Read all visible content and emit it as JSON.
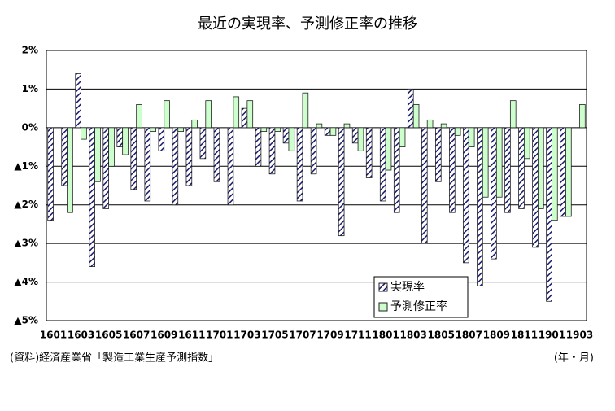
{
  "chart_data": {
    "type": "bar",
    "title": "最近の実現率、予測修正率の推移",
    "categories": [
      "1601",
      null,
      "1603",
      null,
      "1605",
      null,
      "1607",
      null,
      "1609",
      null,
      "1611",
      null,
      "1701",
      null,
      "1703",
      null,
      "1705",
      null,
      "1707",
      null,
      "1709",
      null,
      "1711",
      null,
      "1801",
      null,
      "1803",
      null,
      "1805",
      null,
      "1807",
      null,
      "1809",
      null,
      "1811",
      null,
      "1901",
      null,
      "1903"
    ],
    "series": [
      {
        "name": "実現率",
        "color": "#1a1a6e",
        "pattern": "hatch",
        "values": [
          -2.4,
          -1.5,
          1.4,
          -3.6,
          -2.1,
          -0.5,
          -1.6,
          -1.9,
          -0.6,
          -2.0,
          -1.5,
          -0.8,
          -1.4,
          -2.0,
          0.5,
          -1.0,
          -1.2,
          -0.4,
          -1.9,
          -1.2,
          -0.2,
          -2.8,
          -0.4,
          -1.3,
          -1.9,
          -2.2,
          1.0,
          -3.0,
          -1.4,
          -2.2,
          -3.5,
          -4.1,
          -3.4,
          -2.2,
          -2.1,
          -3.1,
          -4.5,
          -2.3,
          null
        ]
      },
      {
        "name": "予測修正率",
        "color": "#ccffcc",
        "values": [
          0,
          -2.2,
          -0.3,
          -1.4,
          -1.0,
          -0.7,
          0.6,
          -0.1,
          0.7,
          -0.1,
          0.2,
          0.7,
          0,
          0.8,
          0.7,
          -0.1,
          -0.1,
          -0.6,
          0.9,
          0.1,
          -0.2,
          0.1,
          -0.6,
          0,
          -1.1,
          -0.5,
          0.6,
          0.2,
          0.1,
          -0.2,
          -0.5,
          -1.8,
          -1.8,
          0.7,
          -0.8,
          -2.1,
          -2.4,
          -2.3,
          0.6
        ]
      }
    ],
    "ylim": [
      -5,
      2
    ],
    "yticks": [
      {
        "value": -5,
        "label": "▲5%"
      },
      {
        "value": -4,
        "label": "▲4%"
      },
      {
        "value": -3,
        "label": "▲3%"
      },
      {
        "value": -2,
        "label": "▲2%"
      },
      {
        "value": -1,
        "label": "▲1%"
      },
      {
        "value": 0,
        "label": "0%"
      },
      {
        "value": 1,
        "label": "1%"
      },
      {
        "value": 2,
        "label": "2%"
      }
    ],
    "grid": true,
    "source": "(資料)経済産業省「製造工業生産予測指数」",
    "x_unit": "(年・月)"
  }
}
